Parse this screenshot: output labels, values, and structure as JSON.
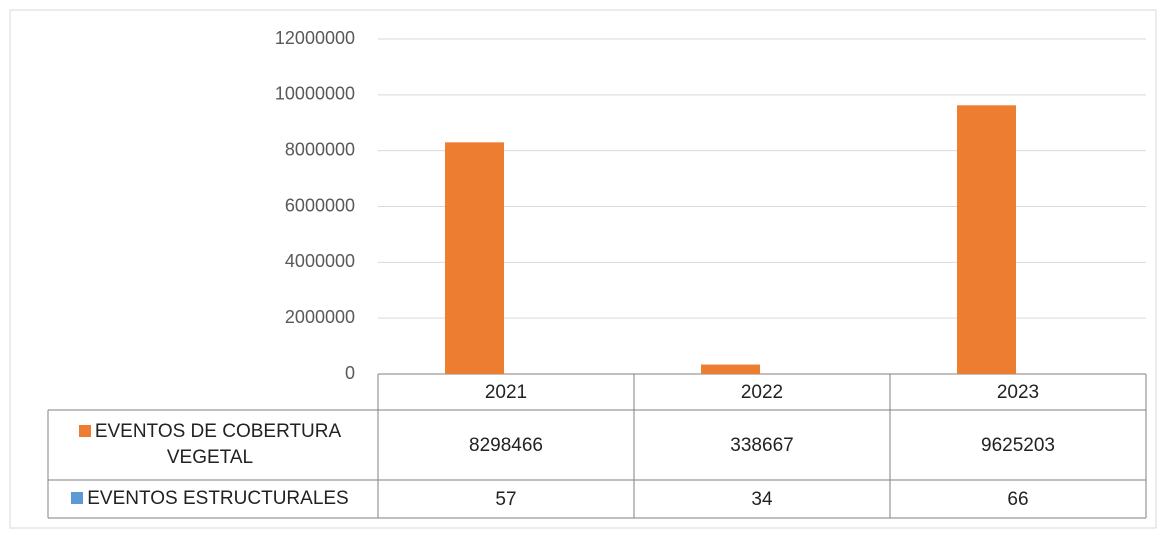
{
  "chart_data": {
    "type": "bar",
    "categories": [
      "2021",
      "2022",
      "2023"
    ],
    "series": [
      {
        "name": "EVENTOS DE COBERTURA VEGETAL",
        "color": "#ed7d31",
        "values": [
          8298466,
          338667,
          9625203
        ]
      },
      {
        "name": "EVENTOS ESTRUCTURALES",
        "color": "#5b9bd5",
        "values": [
          57,
          34,
          66
        ]
      }
    ],
    "ylim": [
      0,
      12000000
    ],
    "yticks": [
      0,
      2000000,
      4000000,
      6000000,
      8000000,
      10000000,
      12000000
    ],
    "grid": true
  }
}
